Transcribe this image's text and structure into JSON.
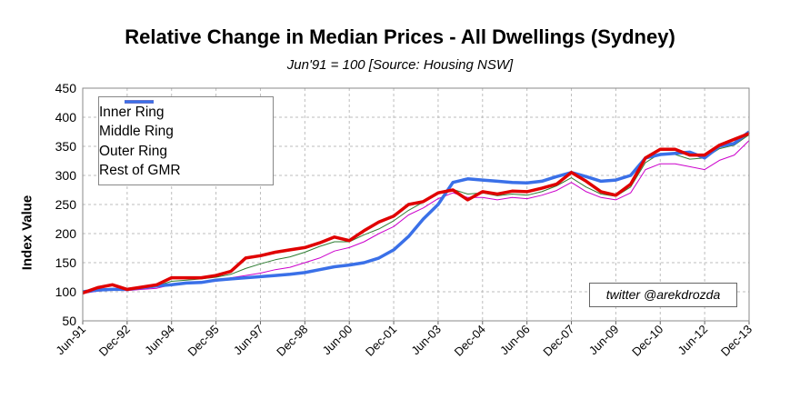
{
  "chart_data": {
    "type": "line",
    "title": "Relative Change in Median Prices - All Dwellings (Sydney)",
    "subtitle": "Jun'91 = 100 [Source: Housing NSW]",
    "ylabel": "Index Value",
    "xlabel": "",
    "ylim": [
      50,
      450
    ],
    "yticks": [
      "50",
      "100",
      "150",
      "200",
      "250",
      "300",
      "350",
      "400",
      "450"
    ],
    "xtick_labels": [
      "Jun-91",
      "Dec-92",
      "Jun-94",
      "Dec-95",
      "Jun-97",
      "Dec-98",
      "Jun-00",
      "Dec-01",
      "Jun-03",
      "Dec-04",
      "Jun-06",
      "Dec-07",
      "Jun-09",
      "Dec-10",
      "Jun-12",
      "Dec-13"
    ],
    "grid": true,
    "legend_position": "top-left",
    "x": [
      "Jun-91",
      "Dec-91",
      "Jun-92",
      "Dec-92",
      "Jun-93",
      "Dec-93",
      "Jun-94",
      "Dec-94",
      "Jun-95",
      "Dec-95",
      "Jun-96",
      "Dec-96",
      "Jun-97",
      "Dec-97",
      "Jun-98",
      "Dec-98",
      "Jun-99",
      "Dec-99",
      "Jun-00",
      "Dec-00",
      "Jun-01",
      "Dec-01",
      "Jun-02",
      "Dec-02",
      "Jun-03",
      "Dec-03",
      "Jun-04",
      "Dec-04",
      "Jun-05",
      "Dec-05",
      "Jun-06",
      "Dec-06",
      "Jun-07",
      "Dec-07",
      "Jun-08",
      "Dec-08",
      "Jun-09",
      "Dec-09",
      "Jun-10",
      "Dec-10",
      "Jun-11",
      "Dec-11",
      "Jun-12",
      "Dec-12",
      "Jun-13",
      "Dec-13"
    ],
    "series": [
      {
        "name": "Inner Ring",
        "color": "#e00000",
        "values": [
          98,
          107,
          112,
          104,
          108,
          112,
          124,
          124,
          124,
          128,
          135,
          158,
          162,
          168,
          172,
          176,
          184,
          194,
          188,
          205,
          220,
          230,
          250,
          255,
          270,
          275,
          258,
          272,
          268,
          273,
          272,
          278,
          285,
          305,
          290,
          272,
          266,
          285,
          330,
          345,
          345,
          335,
          335,
          352,
          362,
          372
        ]
      },
      {
        "name": "Middle Ring",
        "color": "#2e7d32",
        "values": [
          97,
          102,
          104,
          103,
          106,
          110,
          118,
          120,
          122,
          125,
          130,
          140,
          148,
          155,
          160,
          168,
          178,
          186,
          186,
          198,
          208,
          222,
          240,
          254,
          268,
          276,
          268,
          270,
          265,
          268,
          266,
          272,
          282,
          296,
          280,
          268,
          264,
          280,
          322,
          338,
          336,
          328,
          330,
          346,
          352,
          370
        ]
      },
      {
        "name": "Outer Ring",
        "color": "#cc00cc",
        "values": [
          97,
          101,
          103,
          102,
          104,
          106,
          112,
          114,
          116,
          118,
          124,
          128,
          132,
          138,
          142,
          150,
          158,
          170,
          176,
          186,
          200,
          212,
          232,
          244,
          260,
          270,
          262,
          262,
          258,
          262,
          260,
          266,
          274,
          288,
          272,
          262,
          258,
          270,
          310,
          320,
          320,
          315,
          310,
          326,
          335,
          360
        ]
      },
      {
        "name": "Rest of GMR",
        "color": "#3a70e8",
        "values": [
          100,
          103,
          104,
          104,
          107,
          110,
          112,
          115,
          116,
          120,
          122,
          124,
          126,
          128,
          130,
          133,
          138,
          143,
          146,
          150,
          158,
          172,
          195,
          225,
          250,
          288,
          294,
          292,
          290,
          288,
          287,
          290,
          298,
          305,
          298,
          290,
          292,
          300,
          330,
          336,
          338,
          340,
          330,
          350,
          355,
          375
        ]
      }
    ],
    "annotation": "twitter @arekdrozda"
  }
}
